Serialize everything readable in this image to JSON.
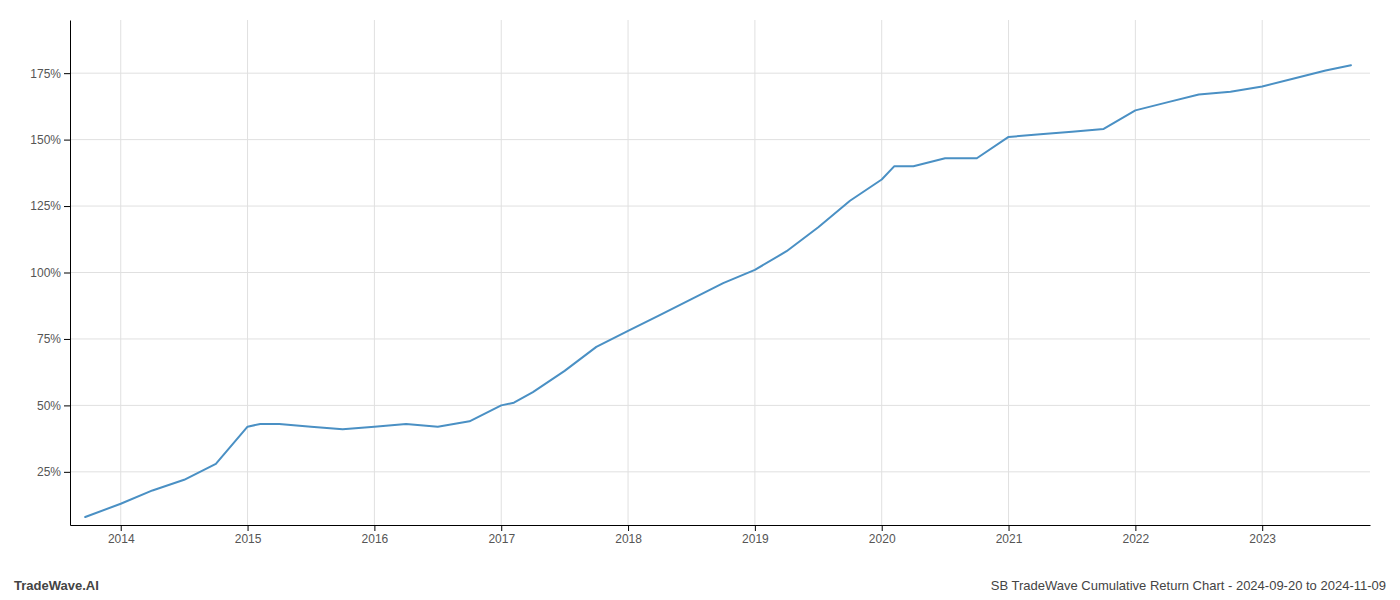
{
  "chart_data": {
    "type": "line",
    "x": [
      2013.72,
      2014.0,
      2014.25,
      2014.5,
      2014.75,
      2015.0,
      2015.1,
      2015.25,
      2015.5,
      2015.75,
      2016.0,
      2016.25,
      2016.5,
      2016.75,
      2017.0,
      2017.1,
      2017.25,
      2017.5,
      2017.75,
      2018.0,
      2018.25,
      2018.5,
      2018.75,
      2019.0,
      2019.25,
      2019.5,
      2019.75,
      2020.0,
      2020.1,
      2020.25,
      2020.5,
      2020.75,
      2021.0,
      2021.25,
      2021.5,
      2021.75,
      2022.0,
      2022.25,
      2022.5,
      2022.75,
      2023.0,
      2023.25,
      2023.5,
      2023.7
    ],
    "values": [
      8,
      13,
      18,
      22,
      28,
      42,
      43,
      43,
      42,
      41,
      42,
      43,
      42,
      44,
      50,
      51,
      55,
      63,
      72,
      78,
      84,
      90,
      96,
      101,
      108,
      117,
      127,
      135,
      140,
      140,
      143,
      143,
      151,
      152,
      153,
      154,
      161,
      164,
      167,
      168,
      170,
      173,
      176,
      178
    ],
    "color": "#4a90c4",
    "xlim": [
      2013.6,
      2023.85
    ],
    "xticks": [
      2014,
      2015,
      2016,
      2017,
      2018,
      2019,
      2020,
      2021,
      2022,
      2023
    ],
    "ylim": [
      5,
      195
    ],
    "yticks": [
      {
        "value": 25,
        "label": "25%"
      },
      {
        "value": 50,
        "label": "50%"
      },
      {
        "value": 75,
        "label": "75%"
      },
      {
        "value": 100,
        "label": "100%"
      },
      {
        "value": 125,
        "label": "125%"
      },
      {
        "value": 150,
        "label": "150%"
      },
      {
        "value": 175,
        "label": "175%"
      }
    ],
    "grid": true,
    "annotations": [
      "TradeWave.AI",
      "SB TradeWave Cumulative Return Chart - 2024-09-20 to 2024-11-09"
    ]
  }
}
